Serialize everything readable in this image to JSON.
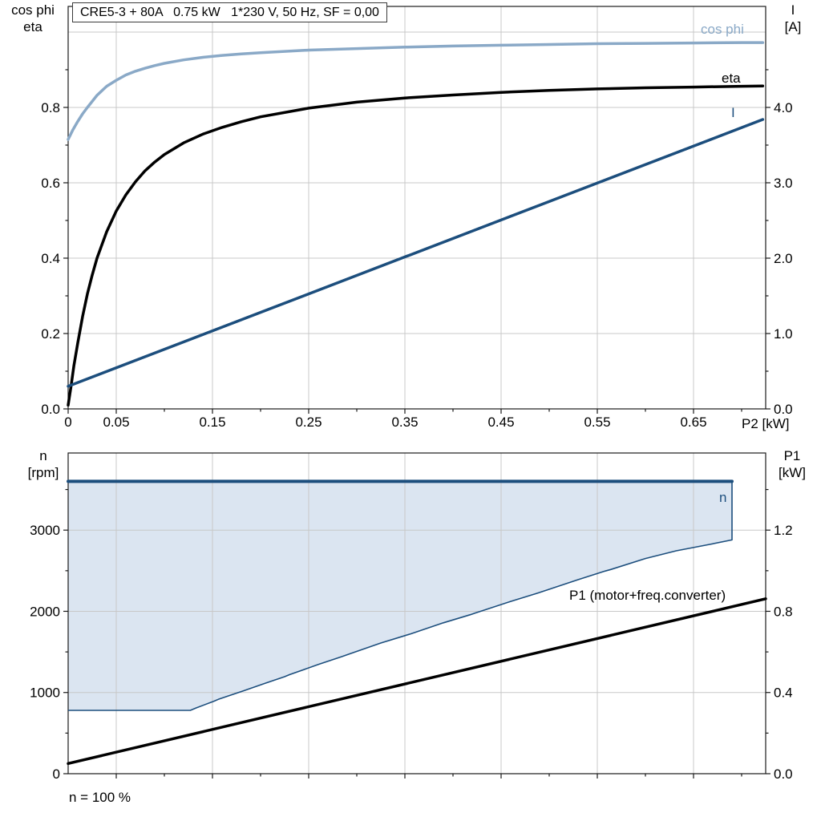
{
  "window": {
    "bg": "#ffffff"
  },
  "colors": {
    "dark_blue": "#1c4e7d",
    "light_blue": "#8aa9c7",
    "area_fill": "#dbe5f1",
    "grid": "#c8c8c8",
    "border": "#1a1a1a",
    "text": "#000000"
  },
  "top_chart": {
    "title": "CRE5-3 + 80A   0.75 kW   1*230 V, 50 Hz, SF = 0,00",
    "left_axis_title_line1": "cos phi",
    "left_axis_title_line2": "eta",
    "right_axis_title_line1": "I",
    "right_axis_title_line2": "[A]",
    "x_axis_title": "P2 [kW]",
    "label_cos_phi": "cos phi",
    "label_eta": "eta",
    "label_current": "I"
  },
  "bottom_chart": {
    "left_axis_title_line1": "n",
    "left_axis_title_line2": "[rpm]",
    "right_axis_title_line1": "P1",
    "right_axis_title_line2": "[kW]",
    "label_n": "n",
    "label_p1": "P1 (motor+freq.converter)",
    "footnote": "n = 100 %"
  },
  "chart_data": [
    {
      "id": "top",
      "type": "line",
      "title": "CRE5-3 + 80A   0.75 kW   1*230 V, 50 Hz, SF = 0,00",
      "x_axis": {
        "label": "P2 [kW]",
        "lim": [
          0,
          0.725
        ],
        "major_ticks": [
          0,
          0.05,
          0.15,
          0.25,
          0.35,
          0.45,
          0.55,
          0.65
        ],
        "tick_labels": [
          "0",
          "0.05",
          "0.15",
          "0.25",
          "0.35",
          "0.45",
          "0.55",
          "0.65"
        ],
        "minor_ticks": [
          0.1,
          0.2,
          0.3,
          0.4,
          0.5,
          0.6,
          0.7
        ],
        "grid": [
          0.05,
          0.15,
          0.25,
          0.35,
          0.45,
          0.55,
          0.65
        ]
      },
      "left_axis": {
        "label": "cos phi / eta",
        "lim": [
          0,
          1.068
        ],
        "major_ticks": [
          0,
          0.2,
          0.4,
          0.6,
          0.8
        ],
        "tick_labels": [
          "0.0",
          "0.2",
          "0.4",
          "0.6",
          "0.8"
        ],
        "minor_ticks": [
          0.1,
          0.3,
          0.5,
          0.7,
          0.9
        ],
        "grid": [
          0.2,
          0.4,
          0.6,
          0.8,
          1.0
        ]
      },
      "right_axis": {
        "label": "I [A]",
        "lim": [
          0,
          5.34
        ],
        "major_ticks": [
          0,
          1,
          2,
          3,
          4
        ],
        "tick_labels": [
          "0.0",
          "1.0",
          "2.0",
          "3.0",
          "4.0"
        ],
        "minor_ticks": [
          0.5,
          1.5,
          2.5,
          3.5,
          4.5
        ]
      },
      "series": [
        {
          "name": "cos phi",
          "axis": "left",
          "color": "#8aa9c7",
          "width": 3.5,
          "points": [
            [
              0,
              0.715
            ],
            [
              0.005,
              0.741
            ],
            [
              0.01,
              0.763
            ],
            [
              0.015,
              0.783
            ],
            [
              0.02,
              0.8
            ],
            [
              0.03,
              0.832
            ],
            [
              0.04,
              0.856
            ],
            [
              0.05,
              0.872
            ],
            [
              0.06,
              0.886
            ],
            [
              0.07,
              0.896
            ],
            [
              0.08,
              0.904
            ],
            [
              0.09,
              0.911
            ],
            [
              0.1,
              0.917
            ],
            [
              0.12,
              0.926
            ],
            [
              0.14,
              0.933
            ],
            [
              0.16,
              0.938
            ],
            [
              0.18,
              0.942
            ],
            [
              0.2,
              0.945
            ],
            [
              0.25,
              0.952
            ],
            [
              0.3,
              0.956
            ],
            [
              0.35,
              0.96
            ],
            [
              0.4,
              0.963
            ],
            [
              0.45,
              0.965
            ],
            [
              0.5,
              0.967
            ],
            [
              0.55,
              0.969
            ],
            [
              0.6,
              0.97
            ],
            [
              0.65,
              0.971
            ],
            [
              0.7,
              0.972
            ],
            [
              0.722,
              0.972
            ]
          ]
        },
        {
          "name": "eta",
          "axis": "left",
          "color": "#000000",
          "width": 3.5,
          "points": [
            [
              0,
              0.01
            ],
            [
              0.003,
              0.06
            ],
            [
              0.006,
              0.115
            ],
            [
              0.01,
              0.175
            ],
            [
              0.015,
              0.245
            ],
            [
              0.02,
              0.305
            ],
            [
              0.025,
              0.355
            ],
            [
              0.03,
              0.4
            ],
            [
              0.04,
              0.47
            ],
            [
              0.05,
              0.525
            ],
            [
              0.06,
              0.568
            ],
            [
              0.07,
              0.603
            ],
            [
              0.08,
              0.632
            ],
            [
              0.09,
              0.655
            ],
            [
              0.1,
              0.675
            ],
            [
              0.12,
              0.706
            ],
            [
              0.14,
              0.729
            ],
            [
              0.16,
              0.747
            ],
            [
              0.18,
              0.762
            ],
            [
              0.2,
              0.775
            ],
            [
              0.25,
              0.798
            ],
            [
              0.3,
              0.814
            ],
            [
              0.35,
              0.825
            ],
            [
              0.4,
              0.833
            ],
            [
              0.45,
              0.84
            ],
            [
              0.5,
              0.845
            ],
            [
              0.55,
              0.849
            ],
            [
              0.6,
              0.852
            ],
            [
              0.65,
              0.854
            ],
            [
              0.7,
              0.856
            ],
            [
              0.722,
              0.857
            ]
          ]
        },
        {
          "name": "I",
          "axis": "right",
          "color": "#1c4e7d",
          "width": 3.5,
          "points": [
            [
              0,
              0.3
            ],
            [
              0.722,
              3.84
            ]
          ]
        }
      ]
    },
    {
      "id": "bottom",
      "type": "line+area",
      "x_axis": {
        "label": "",
        "lim": [
          0,
          0.725
        ],
        "major_ticks": [
          0.05,
          0.15,
          0.25,
          0.35,
          0.45,
          0.55,
          0.65
        ],
        "tick_labels": [],
        "minor_ticks": [
          0.1,
          0.2,
          0.3,
          0.4,
          0.5,
          0.6,
          0.7
        ],
        "grid": [
          0.05,
          0.15,
          0.25,
          0.35,
          0.45,
          0.55,
          0.65
        ]
      },
      "left_axis": {
        "label": "n [rpm]",
        "lim": [
          0,
          3950
        ],
        "major_ticks": [
          0,
          1000,
          2000,
          3000
        ],
        "tick_labels": [
          "0",
          "1000",
          "2000",
          "3000"
        ],
        "minor_ticks": [
          500,
          1500,
          2500,
          3500
        ],
        "grid": [
          1000,
          2000,
          3000
        ]
      },
      "right_axis": {
        "label": "P1 [kW]",
        "lim": [
          0,
          1.58
        ],
        "major_ticks": [
          0,
          0.4,
          0.8,
          1.2
        ],
        "tick_labels": [
          "0.0",
          "0.4",
          "0.8",
          "1.2"
        ],
        "minor_ticks": [
          0.2,
          0.6,
          1.0,
          1.4
        ]
      },
      "area": {
        "name": "n speed operating range",
        "fill": "#dbe5f1",
        "stroke": "#1c4e7d",
        "n_max": 3600,
        "n_min": 780,
        "upper": [
          [
            0,
            3600
          ],
          [
            0.69,
            3600
          ]
        ],
        "lower": [
          [
            0,
            780
          ],
          [
            0.127,
            780
          ],
          [
            0.133,
            810
          ],
          [
            0.152,
            895
          ],
          [
            0.156,
            915
          ],
          [
            0.177,
            1000
          ],
          [
            0.182,
            1020
          ],
          [
            0.205,
            1115
          ],
          [
            0.225,
            1195
          ],
          [
            0.23,
            1220
          ],
          [
            0.26,
            1345
          ],
          [
            0.285,
            1445
          ],
          [
            0.29,
            1465
          ],
          [
            0.325,
            1610
          ],
          [
            0.35,
            1700
          ],
          [
            0.356,
            1722
          ],
          [
            0.39,
            1858
          ],
          [
            0.418,
            1958
          ],
          [
            0.424,
            1982
          ],
          [
            0.46,
            2122
          ],
          [
            0.488,
            2225
          ],
          [
            0.494,
            2248
          ],
          [
            0.53,
            2390
          ],
          [
            0.558,
            2495
          ],
          [
            0.564,
            2515
          ],
          [
            0.6,
            2650
          ],
          [
            0.632,
            2745
          ],
          [
            0.663,
            2815
          ],
          [
            0.69,
            2880
          ]
        ]
      },
      "series": [
        {
          "name": "P1 (motor+freq.converter)",
          "axis": "right",
          "color": "#000000",
          "width": 3.5,
          "points": [
            [
              0,
              0.05
            ],
            [
              0.725,
              0.862
            ]
          ]
        }
      ],
      "footnote": "n = 100 %"
    }
  ]
}
